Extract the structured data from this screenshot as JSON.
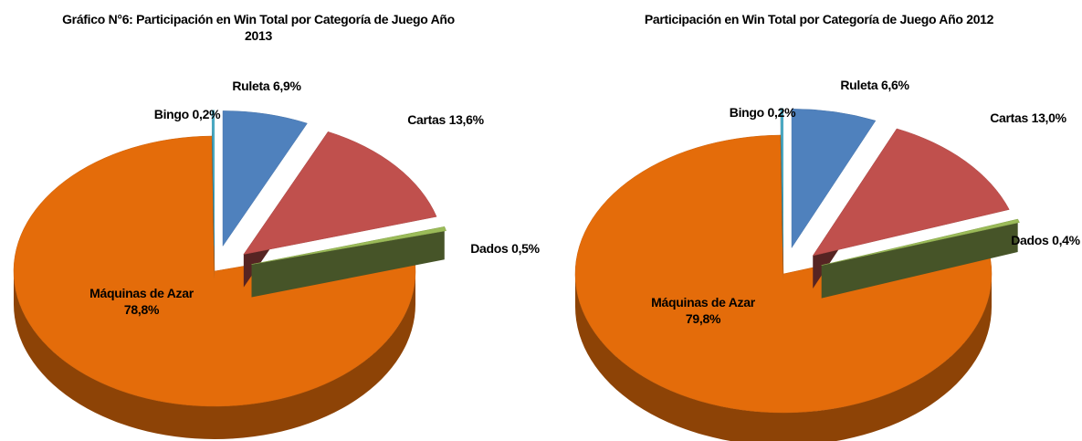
{
  "chart_data": [
    {
      "type": "pie",
      "title": "Gráfico N°6: Participación en Win Total por Categoría de Juego Año 2013",
      "categories": [
        "Ruleta",
        "Cartas",
        "Dados",
        "Máquinas de Azar",
        "Bingo"
      ],
      "values": [
        6.9,
        13.6,
        0.5,
        78.8,
        0.2
      ],
      "value_labels": [
        "6,9%",
        "13,6%",
        "0,5%",
        "78,8%",
        "0,2%"
      ],
      "colors": [
        "#4f81bd",
        "#c0504d",
        "#9bbb59",
        "#e46c0a",
        "#4bacc6"
      ]
    },
    {
      "type": "pie",
      "title": "Participación en Win Total por Categoría de Juego Año 2012",
      "categories": [
        "Ruleta",
        "Cartas",
        "Dados",
        "Máquinas de Azar",
        "Bingo"
      ],
      "values": [
        6.6,
        13.0,
        0.4,
        79.8,
        0.2
      ],
      "value_labels": [
        "6,6%",
        "13,0%",
        "0,4%",
        "79,8%",
        "0,2%"
      ],
      "colors": [
        "#4f81bd",
        "#c0504d",
        "#9bbb59",
        "#e46c0a",
        "#4bacc6"
      ]
    }
  ]
}
